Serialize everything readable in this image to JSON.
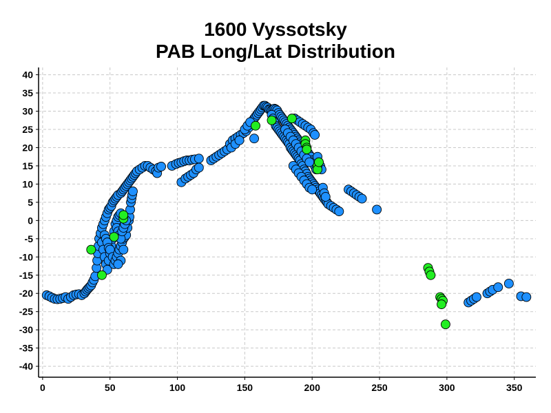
{
  "chart_data": {
    "type": "scatter",
    "title_lines": [
      "1600 Vyssotsky",
      "PAB Long/Lat Distribution"
    ],
    "xlabel": "",
    "ylabel": "",
    "xlim": [
      -3,
      366
    ],
    "ylim": [
      -43,
      42
    ],
    "x_ticks": [
      0,
      50,
      100,
      150,
      200,
      250,
      300,
      350
    ],
    "y_ticks": [
      40,
      35,
      30,
      25,
      20,
      15,
      10,
      5,
      0,
      -5,
      -10,
      -15,
      -20,
      -25,
      -30,
      -35,
      -40
    ],
    "grid": true,
    "legend": "none",
    "colors": {
      "blue": "#1e90ff",
      "green": "#22ee22",
      "edge": "#000000"
    },
    "series": [
      {
        "color": "blue",
        "points": [
          [
            3,
            -20.5
          ],
          [
            5,
            -20.8
          ],
          [
            7,
            -21.2
          ],
          [
            9,
            -21.5
          ],
          [
            11,
            -21.6
          ],
          [
            13,
            -21.5
          ],
          [
            15,
            -21.3
          ],
          [
            17,
            -21
          ],
          [
            19,
            -21.5
          ],
          [
            21,
            -21
          ],
          [
            23,
            -20.5
          ],
          [
            25,
            -20.3
          ],
          [
            27,
            -20.2
          ],
          [
            29,
            -20.5
          ],
          [
            31,
            -20
          ],
          [
            32,
            -19.5
          ],
          [
            33,
            -19
          ],
          [
            34,
            -18.6
          ],
          [
            35,
            -18.2
          ],
          [
            36,
            -17.8
          ],
          [
            37,
            -17
          ],
          [
            38,
            -16.3
          ],
          [
            39,
            -15.3
          ],
          [
            40,
            -13
          ],
          [
            40.5,
            -11
          ],
          [
            41,
            -9
          ],
          [
            41.5,
            -7
          ],
          [
            42,
            -5
          ],
          [
            43,
            -3.5
          ],
          [
            44,
            -2
          ],
          [
            45,
            -1
          ],
          [
            46,
            0
          ],
          [
            47,
            1
          ],
          [
            48,
            2
          ],
          [
            49,
            3
          ],
          [
            50,
            3.5
          ],
          [
            51,
            4
          ],
          [
            52,
            5
          ],
          [
            53,
            5.5
          ],
          [
            54,
            6
          ],
          [
            55,
            6.5
          ],
          [
            56,
            7
          ],
          [
            58,
            7.5
          ],
          [
            59,
            8
          ],
          [
            60,
            8.5
          ],
          [
            61,
            9
          ],
          [
            62,
            9.5
          ],
          [
            63,
            10
          ],
          [
            64,
            10.5
          ],
          [
            65,
            11
          ],
          [
            66,
            11.5
          ],
          [
            67,
            12
          ],
          [
            68,
            12.5
          ],
          [
            69,
            13
          ],
          [
            70,
            13.5
          ],
          [
            72,
            14
          ],
          [
            74,
            14.5
          ],
          [
            76,
            15
          ],
          [
            78,
            15
          ],
          [
            80,
            14.5
          ],
          [
            82,
            14
          ],
          [
            84,
            13.5
          ],
          [
            85,
            13
          ],
          [
            86,
            14.5
          ],
          [
            88,
            14.8
          ],
          [
            44,
            -6
          ],
          [
            45,
            -8
          ],
          [
            46,
            -10
          ],
          [
            47,
            -12
          ],
          [
            48,
            -13.5
          ],
          [
            49,
            -11
          ],
          [
            50,
            -9
          ],
          [
            51,
            -7
          ],
          [
            52,
            -5
          ],
          [
            53,
            -3
          ],
          [
            54,
            -1
          ],
          [
            55,
            0
          ],
          [
            56,
            1
          ],
          [
            57,
            1.5
          ],
          [
            58,
            2
          ],
          [
            46,
            -4
          ],
          [
            47,
            -5
          ],
          [
            48,
            -6
          ],
          [
            49,
            -7.5
          ],
          [
            50,
            -8
          ],
          [
            52,
            -10
          ],
          [
            53,
            -12
          ],
          [
            54,
            -11
          ],
          [
            55,
            -10
          ],
          [
            56,
            -9
          ],
          [
            57,
            -8
          ],
          [
            58,
            -7
          ],
          [
            59,
            -6
          ],
          [
            60,
            -5
          ],
          [
            61,
            -4.5
          ],
          [
            62,
            -4
          ],
          [
            63,
            -2
          ],
          [
            64,
            0
          ],
          [
            64.5,
            1
          ],
          [
            65,
            3
          ],
          [
            65.5,
            5
          ],
          [
            66,
            6
          ],
          [
            66.5,
            7
          ],
          [
            67,
            8
          ],
          [
            55,
            -2
          ],
          [
            56,
            -3
          ],
          [
            57,
            -4
          ],
          [
            58,
            -5
          ],
          [
            59,
            -3
          ],
          [
            60,
            -2
          ],
          [
            61,
            -1
          ],
          [
            62,
            0
          ],
          [
            60,
            -8
          ],
          [
            58,
            -11
          ],
          [
            56,
            -12
          ],
          [
            96,
            15
          ],
          [
            99,
            15.5
          ],
          [
            101,
            15.8
          ],
          [
            103,
            16
          ],
          [
            105,
            16.3
          ],
          [
            107,
            16.5
          ],
          [
            109,
            16.5
          ],
          [
            111,
            16.7
          ],
          [
            113,
            16.8
          ],
          [
            116,
            17
          ],
          [
            103,
            10.5
          ],
          [
            106,
            11.5
          ],
          [
            108,
            12
          ],
          [
            110,
            12.5
          ],
          [
            112,
            13
          ],
          [
            114,
            14
          ],
          [
            116,
            14.5
          ],
          [
            125,
            16.5
          ],
          [
            127,
            17
          ],
          [
            129,
            17.5
          ],
          [
            131,
            18
          ],
          [
            133,
            18.5
          ],
          [
            135,
            19
          ],
          [
            137,
            19.5
          ],
          [
            139,
            21
          ],
          [
            141,
            22
          ],
          [
            143,
            22.5
          ],
          [
            145,
            23
          ],
          [
            147,
            23.5
          ],
          [
            149,
            24
          ],
          [
            151,
            24.5
          ],
          [
            153,
            25.5
          ],
          [
            155,
            26.5
          ],
          [
            156,
            27.5
          ],
          [
            157,
            28
          ],
          [
            158,
            28.5
          ],
          [
            159,
            29
          ],
          [
            160,
            29.5
          ],
          [
            161,
            30
          ],
          [
            162,
            30.5
          ],
          [
            163,
            31
          ],
          [
            164,
            31.5
          ],
          [
            165,
            31.5
          ],
          [
            166,
            31.2
          ],
          [
            167,
            31
          ],
          [
            168,
            30.5
          ],
          [
            140,
            20
          ],
          [
            143,
            21
          ],
          [
            146,
            22
          ],
          [
            157,
            22.5
          ],
          [
            150,
            25
          ],
          [
            152,
            26
          ],
          [
            154,
            27
          ],
          [
            169,
            30.5
          ],
          [
            170,
            30.3
          ],
          [
            171,
            30.5
          ],
          [
            172,
            30.7
          ],
          [
            173,
            30.5
          ],
          [
            174,
            30.2
          ],
          [
            175,
            29.5
          ],
          [
            176,
            28.8
          ],
          [
            170,
            29
          ],
          [
            171,
            28
          ],
          [
            172,
            27
          ],
          [
            173,
            26
          ],
          [
            174,
            25.5
          ],
          [
            175,
            25
          ],
          [
            176,
            24.5
          ],
          [
            177,
            24
          ],
          [
            178,
            23.5
          ],
          [
            179,
            23
          ],
          [
            180,
            22.5
          ],
          [
            181,
            22
          ],
          [
            182,
            21.5
          ],
          [
            183,
            21
          ],
          [
            184,
            20
          ],
          [
            185,
            19.5
          ],
          [
            186,
            19
          ],
          [
            187,
            18.5
          ],
          [
            188,
            18
          ],
          [
            189,
            17.5
          ],
          [
            190,
            17
          ],
          [
            191,
            16.5
          ],
          [
            192,
            15.5
          ],
          [
            193,
            15
          ],
          [
            194,
            14
          ],
          [
            195,
            13.5
          ],
          [
            196,
            12.8
          ],
          [
            197,
            12
          ],
          [
            198,
            11.5
          ],
          [
            199,
            11
          ],
          [
            200,
            10.5
          ],
          [
            201,
            10
          ],
          [
            202,
            9.5
          ],
          [
            203,
            9
          ],
          [
            204,
            8.5
          ],
          [
            205,
            8
          ],
          [
            206,
            7.5
          ],
          [
            207,
            7
          ],
          [
            208,
            6.5
          ],
          [
            209,
            6
          ],
          [
            210,
            5.5
          ],
          [
            211,
            5
          ],
          [
            212,
            4.5
          ],
          [
            214,
            4
          ],
          [
            216,
            3.5
          ],
          [
            218,
            3
          ],
          [
            220,
            2.5
          ],
          [
            176,
            29
          ],
          [
            177,
            28.5
          ],
          [
            178,
            28
          ],
          [
            179,
            27.5
          ],
          [
            180,
            27
          ],
          [
            181,
            26.5
          ],
          [
            182,
            26
          ],
          [
            183,
            25.5
          ],
          [
            184,
            25
          ],
          [
            185,
            24.5
          ],
          [
            186,
            24
          ],
          [
            187,
            23.5
          ],
          [
            188,
            23
          ],
          [
            189,
            22.5
          ],
          [
            190,
            22
          ],
          [
            191,
            21.5
          ],
          [
            192,
            21
          ],
          [
            193,
            20.5
          ],
          [
            194,
            20
          ],
          [
            195,
            19.5
          ],
          [
            196,
            19
          ],
          [
            197,
            18.5
          ],
          [
            198,
            18
          ],
          [
            199,
            17.5
          ],
          [
            200,
            16.5
          ],
          [
            201,
            16
          ],
          [
            202,
            15
          ],
          [
            203,
            14
          ],
          [
            187,
            28
          ],
          [
            189,
            27.5
          ],
          [
            191,
            27
          ],
          [
            193,
            26.5
          ],
          [
            195,
            26
          ],
          [
            197,
            25.5
          ],
          [
            199,
            25
          ],
          [
            201,
            24
          ],
          [
            202,
            23.5
          ],
          [
            180,
            25
          ],
          [
            182,
            24
          ],
          [
            184,
            23
          ],
          [
            186,
            22
          ],
          [
            188,
            21
          ],
          [
            190,
            20
          ],
          [
            192,
            19
          ],
          [
            194,
            18
          ],
          [
            196,
            17
          ],
          [
            198,
            16
          ],
          [
            186,
            15
          ],
          [
            188,
            14
          ],
          [
            190,
            13
          ],
          [
            192,
            12
          ],
          [
            194,
            11
          ],
          [
            196,
            10
          ],
          [
            198,
            9
          ],
          [
            200,
            8.5
          ],
          [
            204,
            17.5
          ],
          [
            205,
            16
          ],
          [
            206,
            15
          ],
          [
            207,
            14
          ],
          [
            208,
            9
          ],
          [
            209,
            7.5
          ],
          [
            210,
            6.5
          ],
          [
            227,
            8.5
          ],
          [
            229,
            8
          ],
          [
            231,
            7.5
          ],
          [
            233,
            7
          ],
          [
            235,
            6.5
          ],
          [
            237,
            6
          ],
          [
            248,
            3
          ],
          [
            316,
            -22.5
          ],
          [
            318,
            -22
          ],
          [
            320,
            -21.5
          ],
          [
            322,
            -21
          ],
          [
            330,
            -20
          ],
          [
            332,
            -19.5
          ],
          [
            334,
            -19
          ],
          [
            338,
            -18.3
          ],
          [
            346,
            -17.3
          ],
          [
            355,
            -20.8
          ],
          [
            359,
            -21
          ]
        ]
      },
      {
        "color": "green",
        "points": [
          [
            36,
            -8
          ],
          [
            44,
            -15
          ],
          [
            53,
            -4.5
          ],
          [
            60,
            0.5
          ],
          [
            60,
            1.5
          ],
          [
            158,
            26
          ],
          [
            170,
            27.5
          ],
          [
            185,
            28
          ],
          [
            195,
            22
          ],
          [
            195,
            21
          ],
          [
            196,
            20
          ],
          [
            196,
            19.5
          ],
          [
            204,
            15
          ],
          [
            204,
            14
          ],
          [
            205,
            16
          ],
          [
            286,
            -13
          ],
          [
            287,
            -14
          ],
          [
            288,
            -15
          ],
          [
            295,
            -21
          ],
          [
            296,
            -21.5
          ],
          [
            297,
            -22
          ],
          [
            296,
            -23
          ],
          [
            299,
            -28.5
          ]
        ]
      }
    ]
  }
}
